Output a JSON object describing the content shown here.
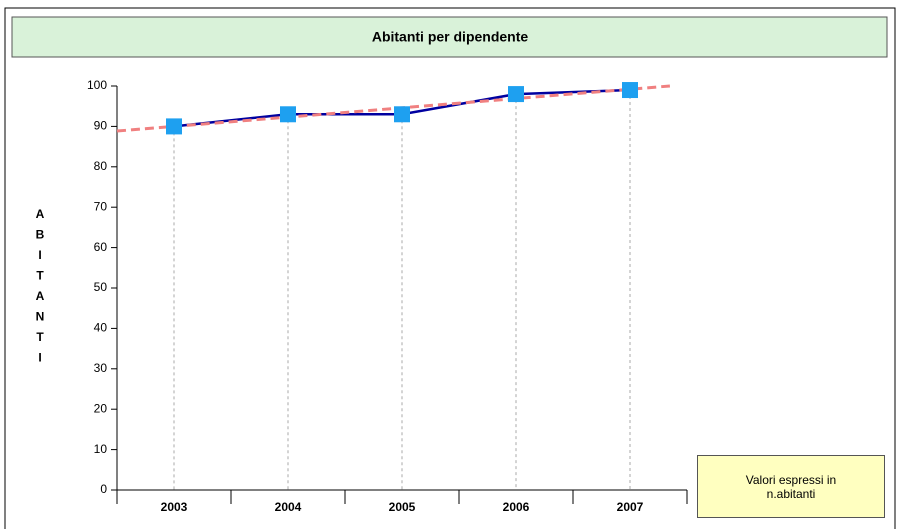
{
  "chart_data": {
    "type": "line",
    "title": "Abitanti per dipendente",
    "y_label": "ABITANTI",
    "categories": [
      "2003",
      "2004",
      "2005",
      "2006",
      "2007"
    ],
    "series": [
      {
        "color": "#0000a0",
        "marker_color": "#1ea0f0",
        "values": [
          90,
          93,
          93,
          98,
          99
        ]
      }
    ],
    "ylim": [
      0,
      100
    ],
    "yticks": [
      0,
      10,
      20,
      30,
      40,
      50,
      60,
      70,
      80,
      90,
      100
    ],
    "trendline": true,
    "trend_color": "#f08080",
    "drop_lines": true,
    "note": "Valori espressi in n.abitanti"
  }
}
